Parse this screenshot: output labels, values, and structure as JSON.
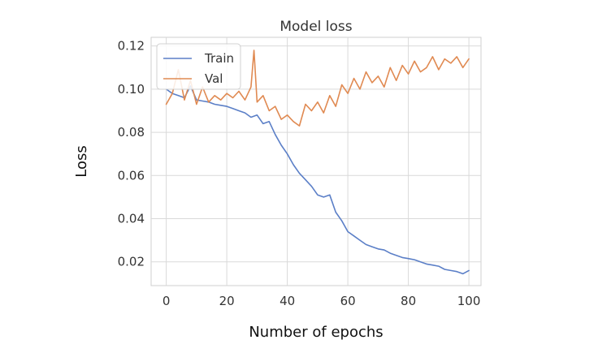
{
  "chart_data": {
    "type": "line",
    "title": "Model loss",
    "xlabel": "Number of epochs",
    "ylabel": "Loss",
    "xlim": [
      -5,
      104
    ],
    "ylim": [
      0.009,
      0.124
    ],
    "xticks": [
      0,
      20,
      40,
      60,
      80,
      100
    ],
    "yticks": [
      0.02,
      0.04,
      0.06,
      0.08,
      0.1,
      0.12
    ],
    "ytick_labels": [
      "0.02",
      "0.04",
      "0.06",
      "0.08",
      "0.10",
      "0.12"
    ],
    "grid": true,
    "legend": "top-left",
    "series": [
      {
        "name": "Train",
        "color": "#5b7fc7",
        "x": [
          0,
          2,
          4,
          6,
          8,
          10,
          12,
          14,
          16,
          18,
          20,
          22,
          24,
          26,
          28,
          30,
          32,
          34,
          36,
          38,
          40,
          42,
          44,
          46,
          48,
          50,
          52,
          54,
          56,
          58,
          60,
          62,
          64,
          66,
          68,
          70,
          72,
          74,
          76,
          78,
          80,
          82,
          84,
          86,
          88,
          90,
          92,
          94,
          96,
          98,
          100
        ],
        "y": [
          0.1,
          0.098,
          0.097,
          0.096,
          0.1015,
          0.095,
          0.0945,
          0.094,
          0.093,
          0.0925,
          0.092,
          0.091,
          0.09,
          0.089,
          0.087,
          0.088,
          0.084,
          0.085,
          0.079,
          0.074,
          0.07,
          0.065,
          0.061,
          0.058,
          0.055,
          0.051,
          0.05,
          0.051,
          0.043,
          0.039,
          0.034,
          0.032,
          0.03,
          0.028,
          0.027,
          0.026,
          0.0255,
          0.024,
          0.023,
          0.022,
          0.0215,
          0.021,
          0.02,
          0.019,
          0.0185,
          0.018,
          0.0165,
          0.016,
          0.0155,
          0.0145,
          0.016
        ]
      },
      {
        "name": "Val",
        "color": "#e08a52",
        "x": [
          0,
          2,
          4,
          6,
          8,
          10,
          12,
          14,
          16,
          18,
          20,
          22,
          24,
          26,
          28,
          29,
          30,
          32,
          34,
          36,
          38,
          40,
          42,
          44,
          46,
          48,
          50,
          52,
          54,
          56,
          58,
          60,
          62,
          64,
          66,
          68,
          70,
          72,
          74,
          76,
          78,
          80,
          82,
          84,
          86,
          88,
          90,
          92,
          94,
          96,
          98,
          100
        ],
        "y": [
          0.093,
          0.098,
          0.109,
          0.095,
          0.104,
          0.093,
          0.101,
          0.094,
          0.097,
          0.095,
          0.098,
          0.096,
          0.099,
          0.095,
          0.101,
          0.118,
          0.094,
          0.097,
          0.09,
          0.092,
          0.086,
          0.088,
          0.085,
          0.083,
          0.093,
          0.09,
          0.094,
          0.089,
          0.097,
          0.092,
          0.102,
          0.098,
          0.105,
          0.1,
          0.108,
          0.103,
          0.106,
          0.101,
          0.11,
          0.104,
          0.111,
          0.107,
          0.113,
          0.108,
          0.11,
          0.115,
          0.109,
          0.114,
          0.112,
          0.115,
          0.11,
          0.114
        ]
      }
    ]
  }
}
